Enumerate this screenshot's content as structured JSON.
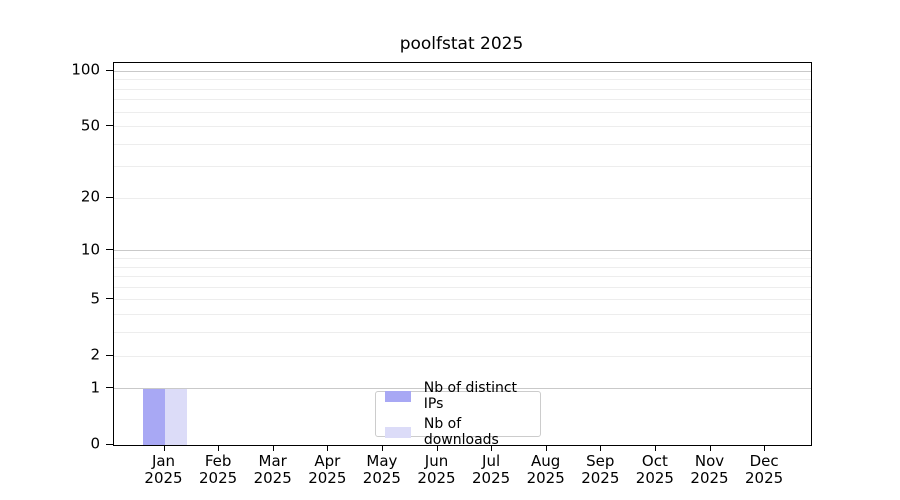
{
  "title": "poolfstat 2025",
  "chart_data": {
    "type": "bar",
    "title": "poolfstat 2025",
    "categories": [
      "Jan",
      "Feb",
      "Mar",
      "Apr",
      "May",
      "Jun",
      "Jul",
      "Aug",
      "Sep",
      "Oct",
      "Nov",
      "Dec"
    ],
    "category_year": "2025",
    "series": [
      {
        "name": "Nb of distinct IPs",
        "color": "#a8a8f4",
        "values": [
          1,
          0,
          0,
          0,
          0,
          0,
          0,
          0,
          0,
          0,
          0,
          0
        ]
      },
      {
        "name": "Nb of downloads",
        "color": "#dcdcf8",
        "values": [
          1,
          0,
          0,
          0,
          0,
          0,
          0,
          0,
          0,
          0,
          0,
          0
        ]
      }
    ],
    "yscale": "log1p",
    "ylim": [
      0,
      111
    ],
    "ytick_labels": [
      0,
      1,
      2,
      5,
      10,
      20,
      50,
      100
    ],
    "major_gridlines": [
      1,
      10,
      100
    ],
    "minor_gridlines": [
      2,
      3,
      4,
      5,
      6,
      7,
      8,
      9,
      20,
      30,
      40,
      50,
      60,
      70,
      80,
      90
    ],
    "grid_on": true,
    "legend_position": "lower center",
    "colors": {
      "major_grid": "#c9c9c9",
      "minor_grid": "#ededed",
      "axis": "#000000",
      "background": "#ffffff"
    }
  }
}
